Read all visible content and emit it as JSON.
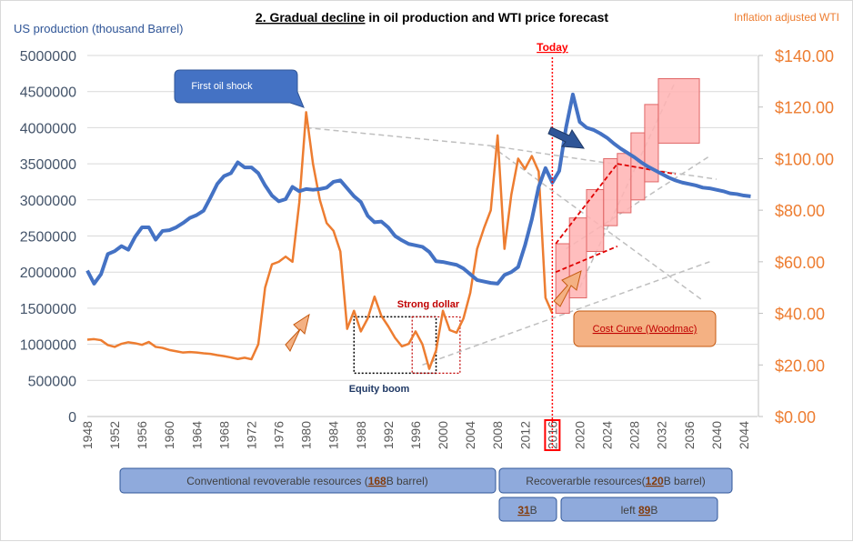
{
  "chart_data": {
    "type": "line",
    "title_parts": [
      "2. Gradual decline",
      " in oil production and WTI price forecast"
    ],
    "left_axis_label": "US production (thousand Barrel)",
    "right_axis_label": "Inflation adjusted WTI",
    "left_ylim": [
      0,
      5000000
    ],
    "left_ticks": [
      "0",
      "500000",
      "1000000",
      "1500000",
      "2000000",
      "2500000",
      "3000000",
      "3500000",
      "4000000",
      "4500000",
      "5000000"
    ],
    "right_ylim": [
      0,
      140
    ],
    "right_ticks": [
      "$0.00",
      "$20.00",
      "$40.00",
      "$60.00",
      "$80.00",
      "$100.00",
      "$120.00",
      "$140.00"
    ],
    "xlim": [
      1948,
      2046
    ],
    "x_ticks": [
      "1948",
      "1952",
      "1956",
      "1960",
      "1964",
      "1968",
      "1972",
      "1976",
      "1980",
      "1984",
      "1988",
      "1992",
      "1996",
      "2000",
      "2004",
      "2008",
      "2012",
      "2016",
      "2020",
      "2024",
      "2028",
      "2032",
      "2036",
      "2040",
      "2044"
    ],
    "grid": true,
    "colors": {
      "production": "#4472c4",
      "price": "#ed7d31",
      "axis_left": "#44546a",
      "axis_right": "#ed7d31",
      "today": "#ff0000",
      "box_fill": "#8faadc",
      "box_stroke": "#2f5597",
      "cost_fill": "#ffb3b3",
      "cost_stroke": "#e06666",
      "trend": "#bfbfbf",
      "red_dash": "#e00000",
      "note_fill": "#f4b183"
    },
    "series": [
      {
        "name": "US production (thousand Barrel)",
        "axis": "left",
        "x": [
          1948,
          1949,
          1950,
          1951,
          1952,
          1953,
          1954,
          1955,
          1956,
          1957,
          1958,
          1959,
          1960,
          1961,
          1962,
          1963,
          1964,
          1965,
          1966,
          1967,
          1968,
          1969,
          1970,
          1971,
          1972,
          1973,
          1974,
          1975,
          1976,
          1977,
          1978,
          1979,
          1980,
          1981,
          1982,
          1983,
          1984,
          1985,
          1986,
          1987,
          1988,
          1989,
          1990,
          1991,
          1992,
          1993,
          1994,
          1995,
          1996,
          1997,
          1998,
          1999,
          2000,
          2001,
          2002,
          2003,
          2004,
          2005,
          2006,
          2007,
          2008,
          2009,
          2010,
          2011,
          2012,
          2013,
          2014,
          2015,
          2016,
          2017,
          2018,
          2019,
          2020,
          2021,
          2022,
          2023,
          2024,
          2025,
          2026,
          2027,
          2028,
          2029,
          2030,
          2031,
          2032,
          2033,
          2034,
          2035,
          2036,
          2037,
          2038,
          2039,
          2040,
          2041,
          2042,
          2043,
          2044,
          2045
        ],
        "values": [
          2020000,
          1840000,
          1970000,
          2250000,
          2290000,
          2360000,
          2310000,
          2490000,
          2620000,
          2620000,
          2450000,
          2570000,
          2580000,
          2620000,
          2680000,
          2750000,
          2790000,
          2850000,
          3030000,
          3220000,
          3330000,
          3370000,
          3520000,
          3450000,
          3450000,
          3370000,
          3200000,
          3060000,
          2980000,
          3010000,
          3180000,
          3120000,
          3150000,
          3140000,
          3150000,
          3170000,
          3250000,
          3270000,
          3160000,
          3050000,
          2970000,
          2780000,
          2690000,
          2700000,
          2620000,
          2500000,
          2440000,
          2390000,
          2370000,
          2350000,
          2280000,
          2150000,
          2140000,
          2120000,
          2100000,
          2050000,
          1970000,
          1890000,
          1870000,
          1850000,
          1840000,
          1960000,
          2000000,
          2070000,
          2370000,
          2730000,
          3180000,
          3440000,
          3240000,
          3400000,
          4000000,
          4460000,
          4080000,
          4000000,
          3970000,
          3920000,
          3860000,
          3780000,
          3710000,
          3650000,
          3590000,
          3520000,
          3460000,
          3410000,
          3360000,
          3310000,
          3270000,
          3240000,
          3220000,
          3200000,
          3170000,
          3160000,
          3140000,
          3120000,
          3090000,
          3080000,
          3060000,
          3050000
        ]
      },
      {
        "name": "Inflation adjusted WTI",
        "axis": "right",
        "x": [
          1948,
          1949,
          1950,
          1951,
          1952,
          1953,
          1954,
          1955,
          1956,
          1957,
          1958,
          1959,
          1960,
          1961,
          1962,
          1963,
          1964,
          1965,
          1966,
          1967,
          1968,
          1969,
          1970,
          1971,
          1972,
          1973,
          1974,
          1975,
          1976,
          1977,
          1978,
          1979,
          1980,
          1981,
          1982,
          1983,
          1984,
          1985,
          1986,
          1987,
          1988,
          1989,
          1990,
          1991,
          1992,
          1993,
          1994,
          1995,
          1996,
          1997,
          1998,
          1999,
          2000,
          2001,
          2002,
          2003,
          2004,
          2005,
          2006,
          2007,
          2008,
          2009,
          2010,
          2011,
          2012,
          2013,
          2014,
          2015,
          2016
        ],
        "values": [
          29.8,
          30.0,
          29.6,
          27.7,
          27.0,
          28.2,
          28.8,
          28.4,
          27.8,
          28.9,
          27.0,
          26.6,
          25.8,
          25.3,
          24.8,
          25.0,
          24.8,
          24.5,
          24.3,
          23.8,
          23.4,
          22.9,
          22.3,
          22.8,
          22.2,
          28.0,
          50.0,
          59.0,
          60.0,
          62.0,
          60.0,
          83.0,
          118.0,
          98.0,
          84.0,
          75.0,
          72.0,
          64.0,
          34.0,
          41.0,
          33.0,
          38.0,
          46.5,
          39.0,
          35.0,
          30.5,
          27.2,
          28.2,
          33.0,
          28.0,
          18.5,
          25.6,
          41.0,
          33.5,
          32.5,
          38.0,
          48.0,
          65.0,
          73.0,
          80.0,
          109.0,
          65.0,
          86.0,
          100.0,
          96.0,
          101.0,
          95.0,
          46.0,
          40.0
        ]
      }
    ],
    "annotations": {
      "today": "Today",
      "today_year": 2016,
      "first_oil_shock": "First oil shock",
      "strong_dollar": "Strong dollar",
      "equity_boom": "Equity boom",
      "cost_curve": "Cost Curve (Woodmac)"
    },
    "cost_curve_boxes": [
      {
        "x0": 2016.5,
        "x1": 2018.5,
        "low": 40,
        "high": 67
      },
      {
        "x0": 2018.5,
        "x1": 2021.0,
        "low": 46,
        "high": 77
      },
      {
        "x0": 2021.0,
        "x1": 2023.5,
        "low": 64,
        "high": 88
      },
      {
        "x0": 2023.5,
        "x1": 2025.5,
        "low": 74,
        "high": 100
      },
      {
        "x0": 2025.5,
        "x1": 2027.5,
        "low": 79,
        "high": 102
      },
      {
        "x0": 2027.5,
        "x1": 2029.5,
        "low": 84,
        "high": 110
      },
      {
        "x0": 2029.5,
        "x1": 2031.5,
        "low": 91,
        "high": 121
      },
      {
        "x0": 2031.5,
        "x1": 2037.5,
        "low": 106,
        "high": 131
      }
    ],
    "resource_boxes": {
      "conventional": {
        "pre": "Conventional revoverable resources (",
        "bold": "168",
        "post": "B barrel)"
      },
      "recoverable": {
        "pre": "Recoverarble resources(",
        "bold": "120",
        "post": "B barrel)"
      },
      "used": {
        "pre": "",
        "bold": "31",
        "post": "B"
      },
      "left": {
        "pre": "left ",
        "bold": "89",
        "post": "B"
      }
    }
  }
}
